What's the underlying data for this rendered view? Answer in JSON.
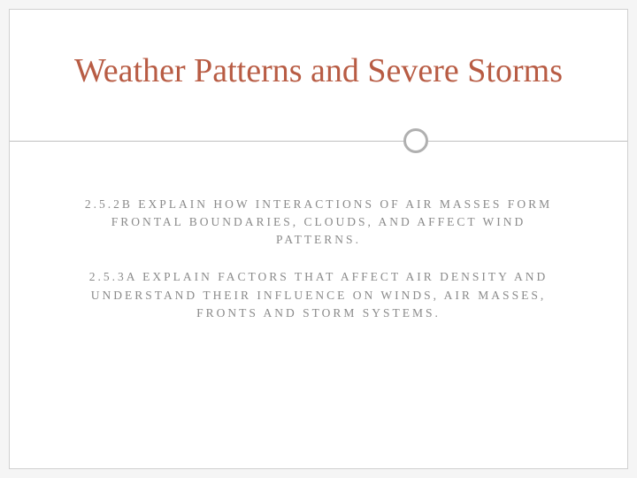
{
  "slide": {
    "title": "Weather Patterns and Severe Storms",
    "title_color": "#b85c44",
    "divider_circle_color": "#b0b0b0",
    "body_color": "#8a8a8a",
    "standards": [
      "2.5.2B EXPLAIN HOW INTERACTIONS OF AIR MASSES FORM FRONTAL BOUNDARIES, CLOUDS, AND AFFECT WIND PATTERNS.",
      "2.5.3A EXPLAIN FACTORS THAT AFFECT AIR DENSITY AND UNDERSTAND THEIR INFLUENCE ON WINDS, AIR MASSES, FRONTS AND STORM SYSTEMS."
    ],
    "background_color": "#ffffff",
    "title_fontsize": 38,
    "body_fontsize": 13.5,
    "body_letter_spacing": 3
  }
}
